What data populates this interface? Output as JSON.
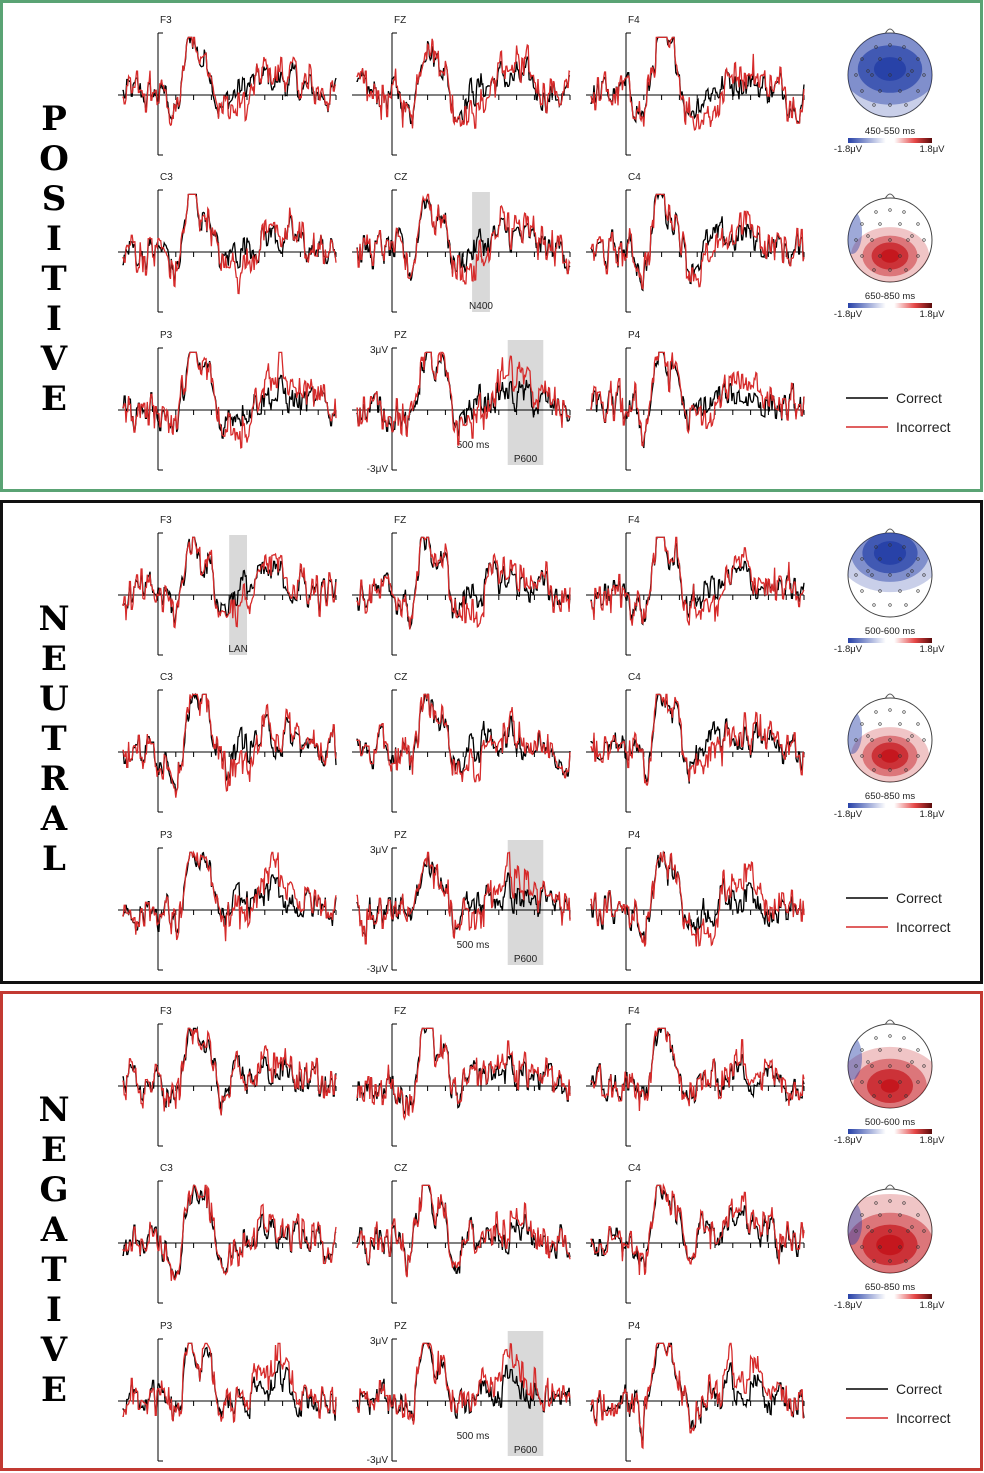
{
  "colors": {
    "correct": "#000000",
    "incorrect": "#d62b2b",
    "positive_frame": "#5aa374",
    "neutral_frame": "#111111",
    "negative_frame": "#c23a32",
    "shade": "#d9d9d9",
    "map_negative": "#2741a8",
    "map_positive": "#c4161c"
  },
  "legend": {
    "correct": "Correct",
    "incorrect": "Incorrect"
  },
  "chart_data": [
    {
      "type": "line",
      "condition": "POSITIVE",
      "y_unit_labels": [
        "3μV",
        "-3μV"
      ],
      "time_marker_label": "500 ms",
      "electrodes": [
        "F3",
        "FZ",
        "F4",
        "C3",
        "CZ",
        "C4",
        "P3",
        "PZ",
        "P4"
      ],
      "highlights": [
        {
          "electrode": "CZ",
          "label": "N400"
        },
        {
          "electrode": "PZ",
          "label": "P600"
        }
      ],
      "topomaps": [
        {
          "window": "450-550 ms",
          "scale_min": "-1.8μV",
          "scale_max": "1.8μV",
          "polarity": "negative",
          "region": "fronto-central"
        },
        {
          "window": "650-850 ms",
          "scale_min": "-1.8μV",
          "scale_max": "1.8μV",
          "polarity": "positive",
          "region": "centro-parietal"
        }
      ]
    },
    {
      "type": "line",
      "condition": "NEUTRAL",
      "y_unit_labels": [
        "3μV",
        "-3μV"
      ],
      "time_marker_label": "500 ms",
      "electrodes": [
        "F3",
        "FZ",
        "F4",
        "C3",
        "CZ",
        "C4",
        "P3",
        "PZ",
        "P4"
      ],
      "highlights": [
        {
          "electrode": "F3",
          "label": "LAN"
        },
        {
          "electrode": "PZ",
          "label": "P600"
        }
      ],
      "topomaps": [
        {
          "window": "500-600 ms",
          "scale_min": "-1.8μV",
          "scale_max": "1.8μV",
          "polarity": "negative",
          "region": "frontal"
        },
        {
          "window": "650-850 ms",
          "scale_min": "-1.8μV",
          "scale_max": "1.8μV",
          "polarity": "positive",
          "region": "centro-parietal"
        }
      ]
    },
    {
      "type": "line",
      "condition": "NEGATIVE",
      "y_unit_labels": [
        "3μV",
        "-3μV"
      ],
      "time_marker_label": "500 ms",
      "electrodes": [
        "F3",
        "FZ",
        "F4",
        "C3",
        "CZ",
        "C4",
        "P3",
        "PZ",
        "P4"
      ],
      "highlights": [
        {
          "electrode": "PZ",
          "label": "P600"
        }
      ],
      "topomaps": [
        {
          "window": "500-600 ms",
          "scale_min": "-1.8μV",
          "scale_max": "1.8μV",
          "polarity": "positive",
          "region": "posterior"
        },
        {
          "window": "650-850 ms",
          "scale_min": "-1.8μV",
          "scale_max": "1.8μV",
          "polarity": "positive",
          "region": "widespread-parietal"
        }
      ]
    }
  ]
}
